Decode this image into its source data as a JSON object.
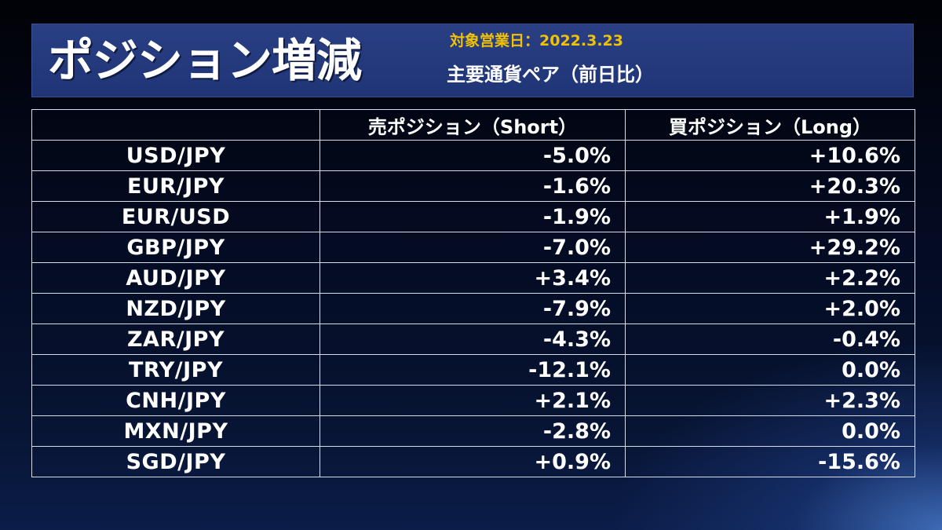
{
  "header": {
    "title": "ポジション増減",
    "date_line": "対象営業日：2022.3.23",
    "subtitle": "主要通貨ペア（前日比）"
  },
  "table": {
    "columns": [
      "",
      "売ポジション（Short）",
      "買ポジション（Long）"
    ],
    "rows": [
      {
        "pair": "USD/JPY",
        "short": "-5.0%",
        "long": "+10.6%"
      },
      {
        "pair": "EUR/JPY",
        "short": "-1.6%",
        "long": "+20.3%"
      },
      {
        "pair": "EUR/USD",
        "short": "-1.9%",
        "long": "+1.9%"
      },
      {
        "pair": "GBP/JPY",
        "short": "-7.0%",
        "long": "+29.2%"
      },
      {
        "pair": "AUD/JPY",
        "short": "+3.4%",
        "long": "+2.2%"
      },
      {
        "pair": "NZD/JPY",
        "short": "-7.9%",
        "long": "+2.0%"
      },
      {
        "pair": "ZAR/JPY",
        "short": "-4.3%",
        "long": "-0.4%"
      },
      {
        "pair": "TRY/JPY",
        "short": "-12.1%",
        "long": "0.0%"
      },
      {
        "pair": "CNH/JPY",
        "short": "+2.1%",
        "long": "+2.3%"
      },
      {
        "pair": "MXN/JPY",
        "short": "-2.8%",
        "long": "0.0%"
      },
      {
        "pair": "SGD/JPY",
        "short": "+0.9%",
        "long": "-15.6%"
      }
    ]
  },
  "colors": {
    "title_bar": "#233a7c",
    "date_text": "#f2c200",
    "text": "#ffffff",
    "grid": "#d8dce6"
  }
}
